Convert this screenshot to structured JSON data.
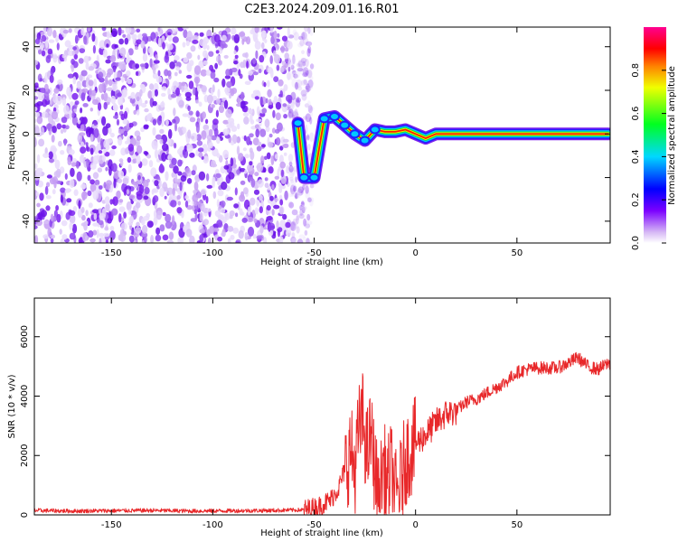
{
  "title": "C2E3.2024.209.01.16.R01",
  "colors": {
    "snr_line": "#e8282a",
    "axis": "#000000",
    "spectrogram_low": "#8a2be2",
    "spectrogram_high": "#ff0000"
  },
  "chart_data": [
    {
      "type": "heatmap",
      "xlabel": "Height of straight line (km)",
      "ylabel": "Frequency (Hz)",
      "xlim": [
        -188,
        96
      ],
      "ylim": [
        -50,
        49
      ],
      "xticks": [
        -150,
        -100,
        -50,
        0,
        50
      ],
      "yticks": [
        -40,
        -20,
        0,
        20,
        40
      ],
      "grid": false,
      "colorbar": {
        "label": "Normalized spectral amplitude",
        "range": [
          0,
          1
        ],
        "ticks": [
          "0.0",
          "0.2",
          "0.4",
          "0.6",
          "0.8"
        ],
        "colormap": "rainbow (purple→blue→cyan→green→yellow→red→magenta)"
      },
      "signal_track": [
        {
          "x": -58,
          "y": 5
        },
        {
          "x": -55,
          "y": -20
        },
        {
          "x": -50,
          "y": -20
        },
        {
          "x": -45,
          "y": 7
        },
        {
          "x": -40,
          "y": 8
        },
        {
          "x": -35,
          "y": 4
        },
        {
          "x": -30,
          "y": 0
        },
        {
          "x": -25,
          "y": -3
        },
        {
          "x": -20,
          "y": 2
        },
        {
          "x": -15,
          "y": 1
        },
        {
          "x": -10,
          "y": 1
        },
        {
          "x": -5,
          "y": 2
        },
        {
          "x": 0,
          "y": 0
        },
        {
          "x": 5,
          "y": -2
        },
        {
          "x": 10,
          "y": 0
        },
        {
          "x": 20,
          "y": 0
        },
        {
          "x": 50,
          "y": 0
        },
        {
          "x": 95,
          "y": 0
        }
      ],
      "noise_extent_x": [
        -188,
        -55
      ]
    },
    {
      "type": "line",
      "xlabel": "Height of straight line (km)",
      "ylabel": "SNR (10 * v/v)",
      "xlim": [
        -188,
        96
      ],
      "ylim": [
        0,
        7300
      ],
      "xticks": [
        -150,
        -100,
        -50,
        0,
        50
      ],
      "yticks": [
        0,
        2000,
        4000,
        6000
      ],
      "grid": false,
      "series": [
        {
          "x": [
            -188,
            -170,
            -150,
            -130,
            -110,
            -90,
            -70,
            -55,
            -48,
            -42,
            -38,
            -34,
            -32,
            -30,
            -28,
            -26,
            -24,
            -22,
            -20,
            -18,
            -16,
            -14,
            -12,
            -10,
            -8,
            -5,
            -2,
            0,
            5,
            10,
            15,
            20,
            25,
            30,
            35,
            40,
            45,
            50,
            55,
            60,
            65,
            70,
            75,
            80,
            85,
            90,
            95
          ],
          "y": [
            150,
            130,
            140,
            150,
            130,
            140,
            150,
            170,
            280,
            500,
            900,
            1700,
            2200,
            1500,
            2800,
            3300,
            2000,
            2700,
            1500,
            300,
            1800,
            1000,
            1600,
            600,
            800,
            1900,
            2200,
            2400,
            2700,
            3100,
            3400,
            3500,
            3800,
            3900,
            4100,
            4300,
            4500,
            4800,
            4900,
            4950,
            4950,
            4950,
            5100,
            5300,
            5000,
            4900,
            5100
          ]
        }
      ]
    }
  ]
}
